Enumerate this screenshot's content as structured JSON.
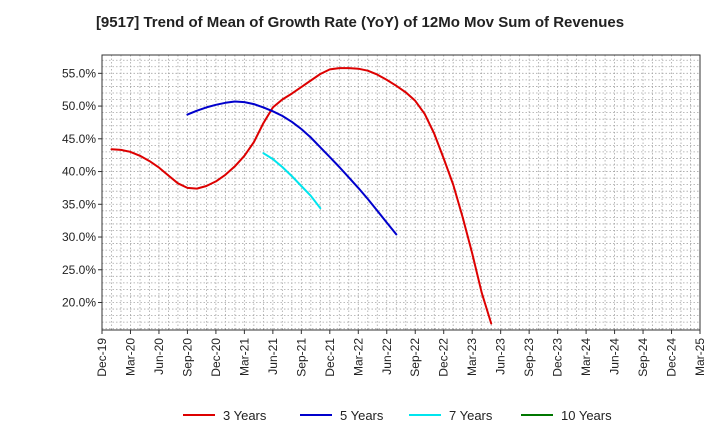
{
  "chart_data": {
    "type": "line",
    "title": "[9517]  Trend of Mean of Growth Rate (YoY) of 12Mo Mov Sum of Revenues",
    "xlabel": "",
    "ylabel": "",
    "x_ticks": [
      "Dec-19",
      "Mar-20",
      "Jun-20",
      "Sep-20",
      "Dec-20",
      "Mar-21",
      "Jun-21",
      "Sep-21",
      "Dec-21",
      "Mar-22",
      "Jun-22",
      "Sep-22",
      "Dec-22",
      "Mar-23",
      "Jun-23",
      "Sep-23",
      "Dec-23",
      "Mar-24",
      "Jun-24",
      "Sep-24",
      "Dec-24",
      "Mar-25"
    ],
    "ylim": [
      15.8,
      57.8
    ],
    "y_ticks": [
      20.0,
      25.0,
      30.0,
      35.0,
      40.0,
      45.0,
      50.0,
      55.0
    ],
    "y_tick_labels": [
      "20.0%",
      "25.0%",
      "30.0%",
      "35.0%",
      "40.0%",
      "45.0%",
      "50.0%",
      "55.0%"
    ],
    "grid": true,
    "legend_position": "bottom",
    "series": [
      {
        "name": "3 Years",
        "color": "#dd0000",
        "start_index": 1,
        "values": [
          43.4,
          43.3,
          43.0,
          42.4,
          41.6,
          40.6,
          39.4,
          38.2,
          37.5,
          37.4,
          37.8,
          38.5,
          39.5,
          40.8,
          42.4,
          44.5,
          47.4,
          49.8,
          51.0,
          51.9,
          52.9,
          53.9,
          54.9,
          55.6,
          55.8,
          55.8,
          55.7,
          55.4,
          54.8,
          54.0,
          53.1,
          52.1,
          50.8,
          48.8,
          45.8,
          42.0,
          38.0,
          33.0,
          27.5,
          21.5,
          16.8
        ]
      },
      {
        "name": "5 Years",
        "color": "#0000cc",
        "start_index": 9,
        "values": [
          48.7,
          49.3,
          49.8,
          50.2,
          50.5,
          50.7,
          50.6,
          50.3,
          49.8,
          49.2,
          48.5,
          47.6,
          46.5,
          45.2,
          43.7,
          42.2,
          40.7,
          39.1,
          37.5,
          35.8,
          34.0,
          32.2,
          30.4
        ]
      },
      {
        "name": "7 Years",
        "color": "#00e5ee",
        "start_index": 17,
        "values": [
          42.8,
          41.9,
          40.7,
          39.3,
          37.8,
          36.3,
          34.4
        ]
      },
      {
        "name": "10 Years",
        "color": "#007700",
        "start_index": 0,
        "values": []
      }
    ]
  }
}
